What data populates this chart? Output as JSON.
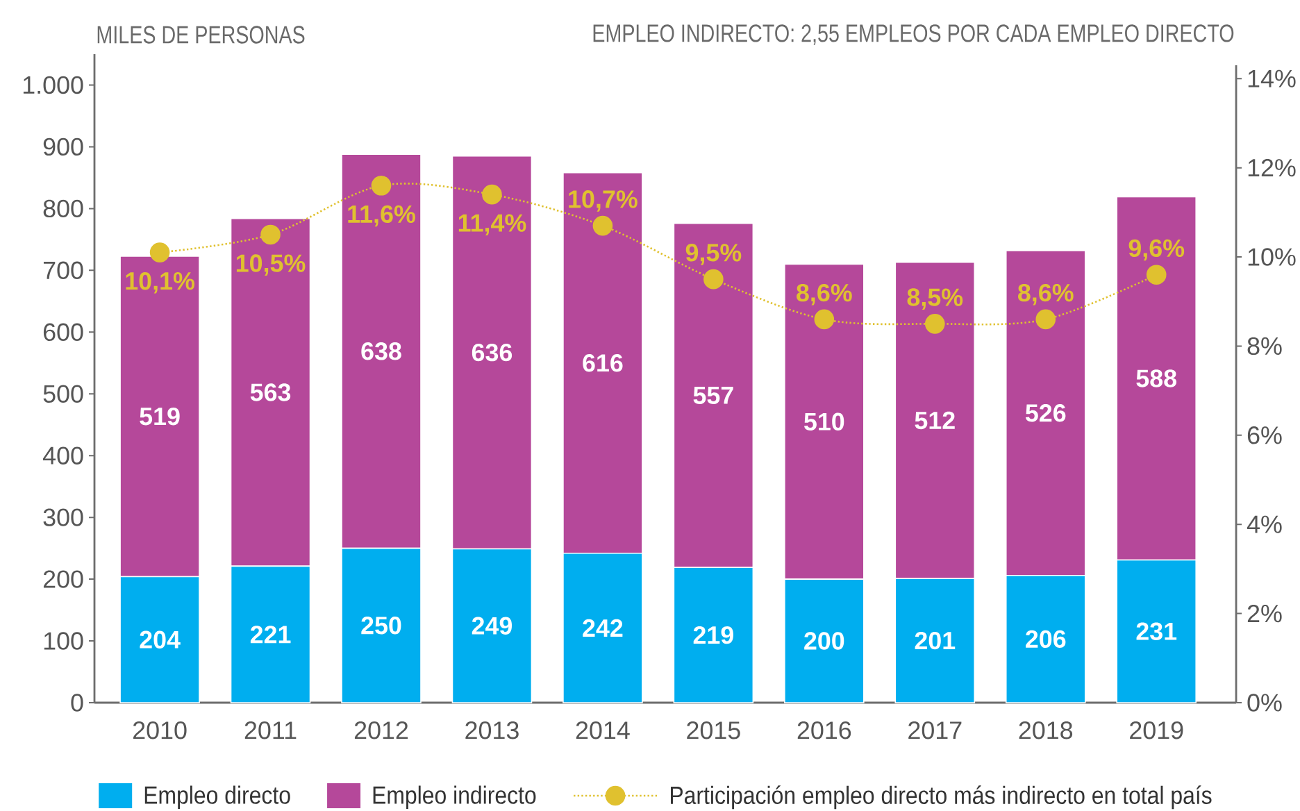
{
  "chart_data": {
    "type": "bar",
    "stacked": true,
    "title": "EMPLEO INDIRECTO: 2,55 EMPLEOS POR CADA EMPLEO DIRECTO",
    "ylabel": "MILES DE PERSONAS",
    "categories": [
      "2010",
      "2011",
      "2012",
      "2013",
      "2014",
      "2015",
      "2016",
      "2017",
      "2018",
      "2019"
    ],
    "series": [
      {
        "name": "Empleo directo",
        "color": "#00aeef",
        "values": [
          204,
          221,
          250,
          249,
          242,
          219,
          200,
          201,
          206,
          231
        ],
        "value_labels": [
          "204",
          "221",
          "250",
          "249",
          "242",
          "219",
          "200",
          "201",
          "206",
          "231"
        ]
      },
      {
        "name": "Empleo indirecto",
        "color": "#b5489a",
        "values": [
          519,
          563,
          638,
          636,
          616,
          557,
          510,
          512,
          526,
          588
        ],
        "value_labels": [
          "519",
          "563",
          "638",
          "636",
          "616",
          "557",
          "510",
          "512",
          "526",
          "588"
        ]
      },
      {
        "name": "Participación empleo directo más indirecto en total país",
        "type": "line",
        "axis": "y2",
        "color": "#e0c12f",
        "marker": "circle",
        "line_style": "dotted",
        "values": [
          10.1,
          10.5,
          11.6,
          11.4,
          10.7,
          9.5,
          8.6,
          8.5,
          8.6,
          9.6
        ],
        "value_labels": [
          "10,1%",
          "10,5%",
          "11,6%",
          "11,4%",
          "10,7%",
          "9,5%",
          "8,6%",
          "8,5%",
          "8,6%",
          "9,6%"
        ]
      }
    ],
    "ylim": [
      0,
      1050
    ],
    "yticks": [
      0,
      100,
      200,
      300,
      400,
      500,
      600,
      700,
      800,
      900,
      {
        "value": 1000,
        "label": "1.000"
      }
    ],
    "y2lim": [
      0,
      14.3
    ],
    "y2ticks": [
      {
        "value": 0,
        "label": "0%"
      },
      {
        "value": 2,
        "label": "2%"
      },
      {
        "value": 4,
        "label": "4%"
      },
      {
        "value": 6,
        "label": "6%"
      },
      {
        "value": 8,
        "label": "8%"
      },
      {
        "value": 10,
        "label": "10%"
      },
      {
        "value": 12,
        "label": "12%"
      },
      {
        "value": 14,
        "label": "14%"
      }
    ],
    "legend": "bottom"
  }
}
